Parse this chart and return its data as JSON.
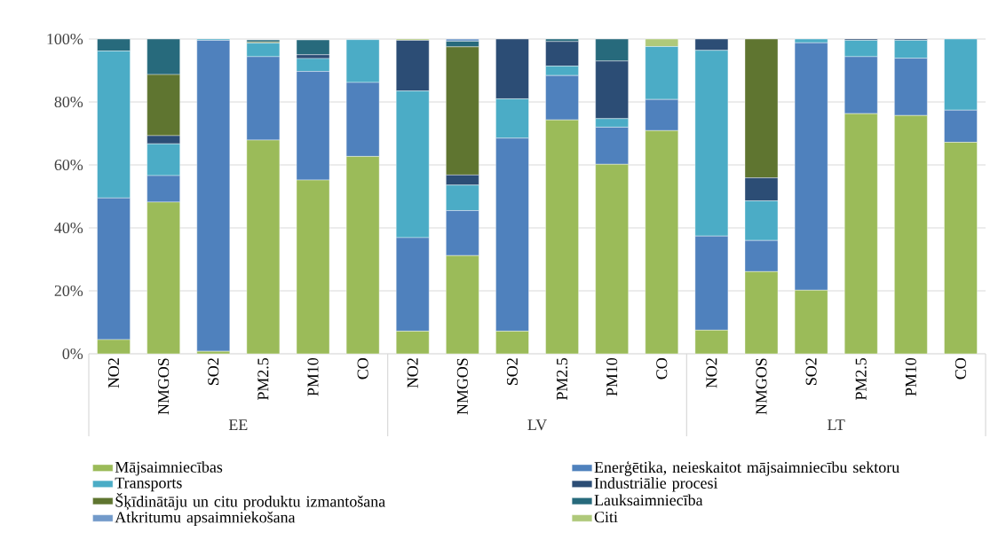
{
  "chart_data": {
    "type": "bar",
    "stacked": true,
    "categories": [
      "NO2",
      "NMGOS",
      "SO2",
      "PM2.5",
      "PM10",
      "CO",
      "NO2",
      "NMGOS",
      "SO2",
      "PM2.5",
      "PM10",
      "CO",
      "NO2",
      "NMGOS",
      "SO2",
      "PM2.5",
      "PM10",
      "CO"
    ],
    "annotations": [
      "EE",
      "LV",
      "LT"
    ],
    "series": [
      {
        "name": "Mājsaimniecības",
        "color": "#9bbb59",
        "values": [
          4.5,
          48.2,
          0.8,
          67.9,
          55.2,
          62.7,
          7.2,
          31.2,
          7.2,
          74.3,
          60.2,
          70.9,
          7.5,
          26.1,
          20.2,
          76.3,
          75.7,
          67.2
        ]
      },
      {
        "name": "Enerģētika, neieskaitot mājsaimniecību sektoru",
        "color": "#4f81bd",
        "values": [
          45.0,
          8.4,
          98.8,
          26.5,
          34.5,
          23.5,
          29.7,
          14.3,
          61.3,
          14.1,
          11.8,
          9.9,
          29.9,
          9.9,
          78.6,
          18.1,
          18.2,
          10.2
        ]
      },
      {
        "name": "Transports",
        "color": "#4bacc6",
        "values": [
          46.7,
          10.1,
          0.4,
          4.3,
          4.1,
          13.6,
          46.6,
          8.1,
          12.5,
          3.0,
          2.7,
          16.8,
          59.0,
          12.6,
          1.2,
          5.2,
          5.7,
          22.6
        ]
      },
      {
        "name": "Industriālie procesi",
        "color": "#2c4d75",
        "values": [
          0,
          2.6,
          0,
          null,
          1.2,
          null,
          16.1,
          3.2,
          19.0,
          7.8,
          18.3,
          0,
          3.6,
          7.3,
          0,
          0.4,
          0.4,
          0
        ]
      },
      {
        "name": "Šķīdinātāju un citu produktu izmantošana",
        "color": "#5f7530",
        "values": [
          0,
          19.4,
          0,
          0.4,
          null,
          0,
          0,
          40.7,
          0,
          0,
          0,
          0,
          0,
          44.1,
          0,
          0,
          0,
          0
        ]
      },
      {
        "name": "Lauksaimniecība",
        "color": "#276a7c",
        "values": [
          3.8,
          11.3,
          0,
          0.6,
          4.7,
          0,
          0,
          1.8,
          0,
          0.8,
          7.0,
          0,
          0,
          0,
          0,
          0,
          0,
          0
        ]
      },
      {
        "name": "Atkritumu apsaimniekošana",
        "color": "#729aca",
        "values": [
          0,
          0,
          0,
          0,
          0,
          0,
          0,
          0.7,
          0,
          0,
          0,
          0,
          0,
          0,
          0,
          0,
          0,
          0
        ]
      },
      {
        "name": "Citi",
        "color": "#afc97a",
        "values": [
          0,
          0,
          0,
          0,
          0,
          0,
          0.4,
          0,
          0,
          0,
          0,
          2.4,
          0,
          0,
          0,
          0,
          0,
          0
        ]
      }
    ],
    "ylim": [
      0,
      100
    ],
    "yticks": [
      {
        "value": 0,
        "label": "0%"
      },
      {
        "value": 20,
        "label": "20%"
      },
      {
        "value": 40,
        "label": "40%"
      },
      {
        "value": 60,
        "label": "60%"
      },
      {
        "value": 80,
        "label": "80%"
      },
      {
        "value": 100,
        "label": "100%"
      }
    ],
    "grid": "y",
    "legend": "bottom"
  }
}
